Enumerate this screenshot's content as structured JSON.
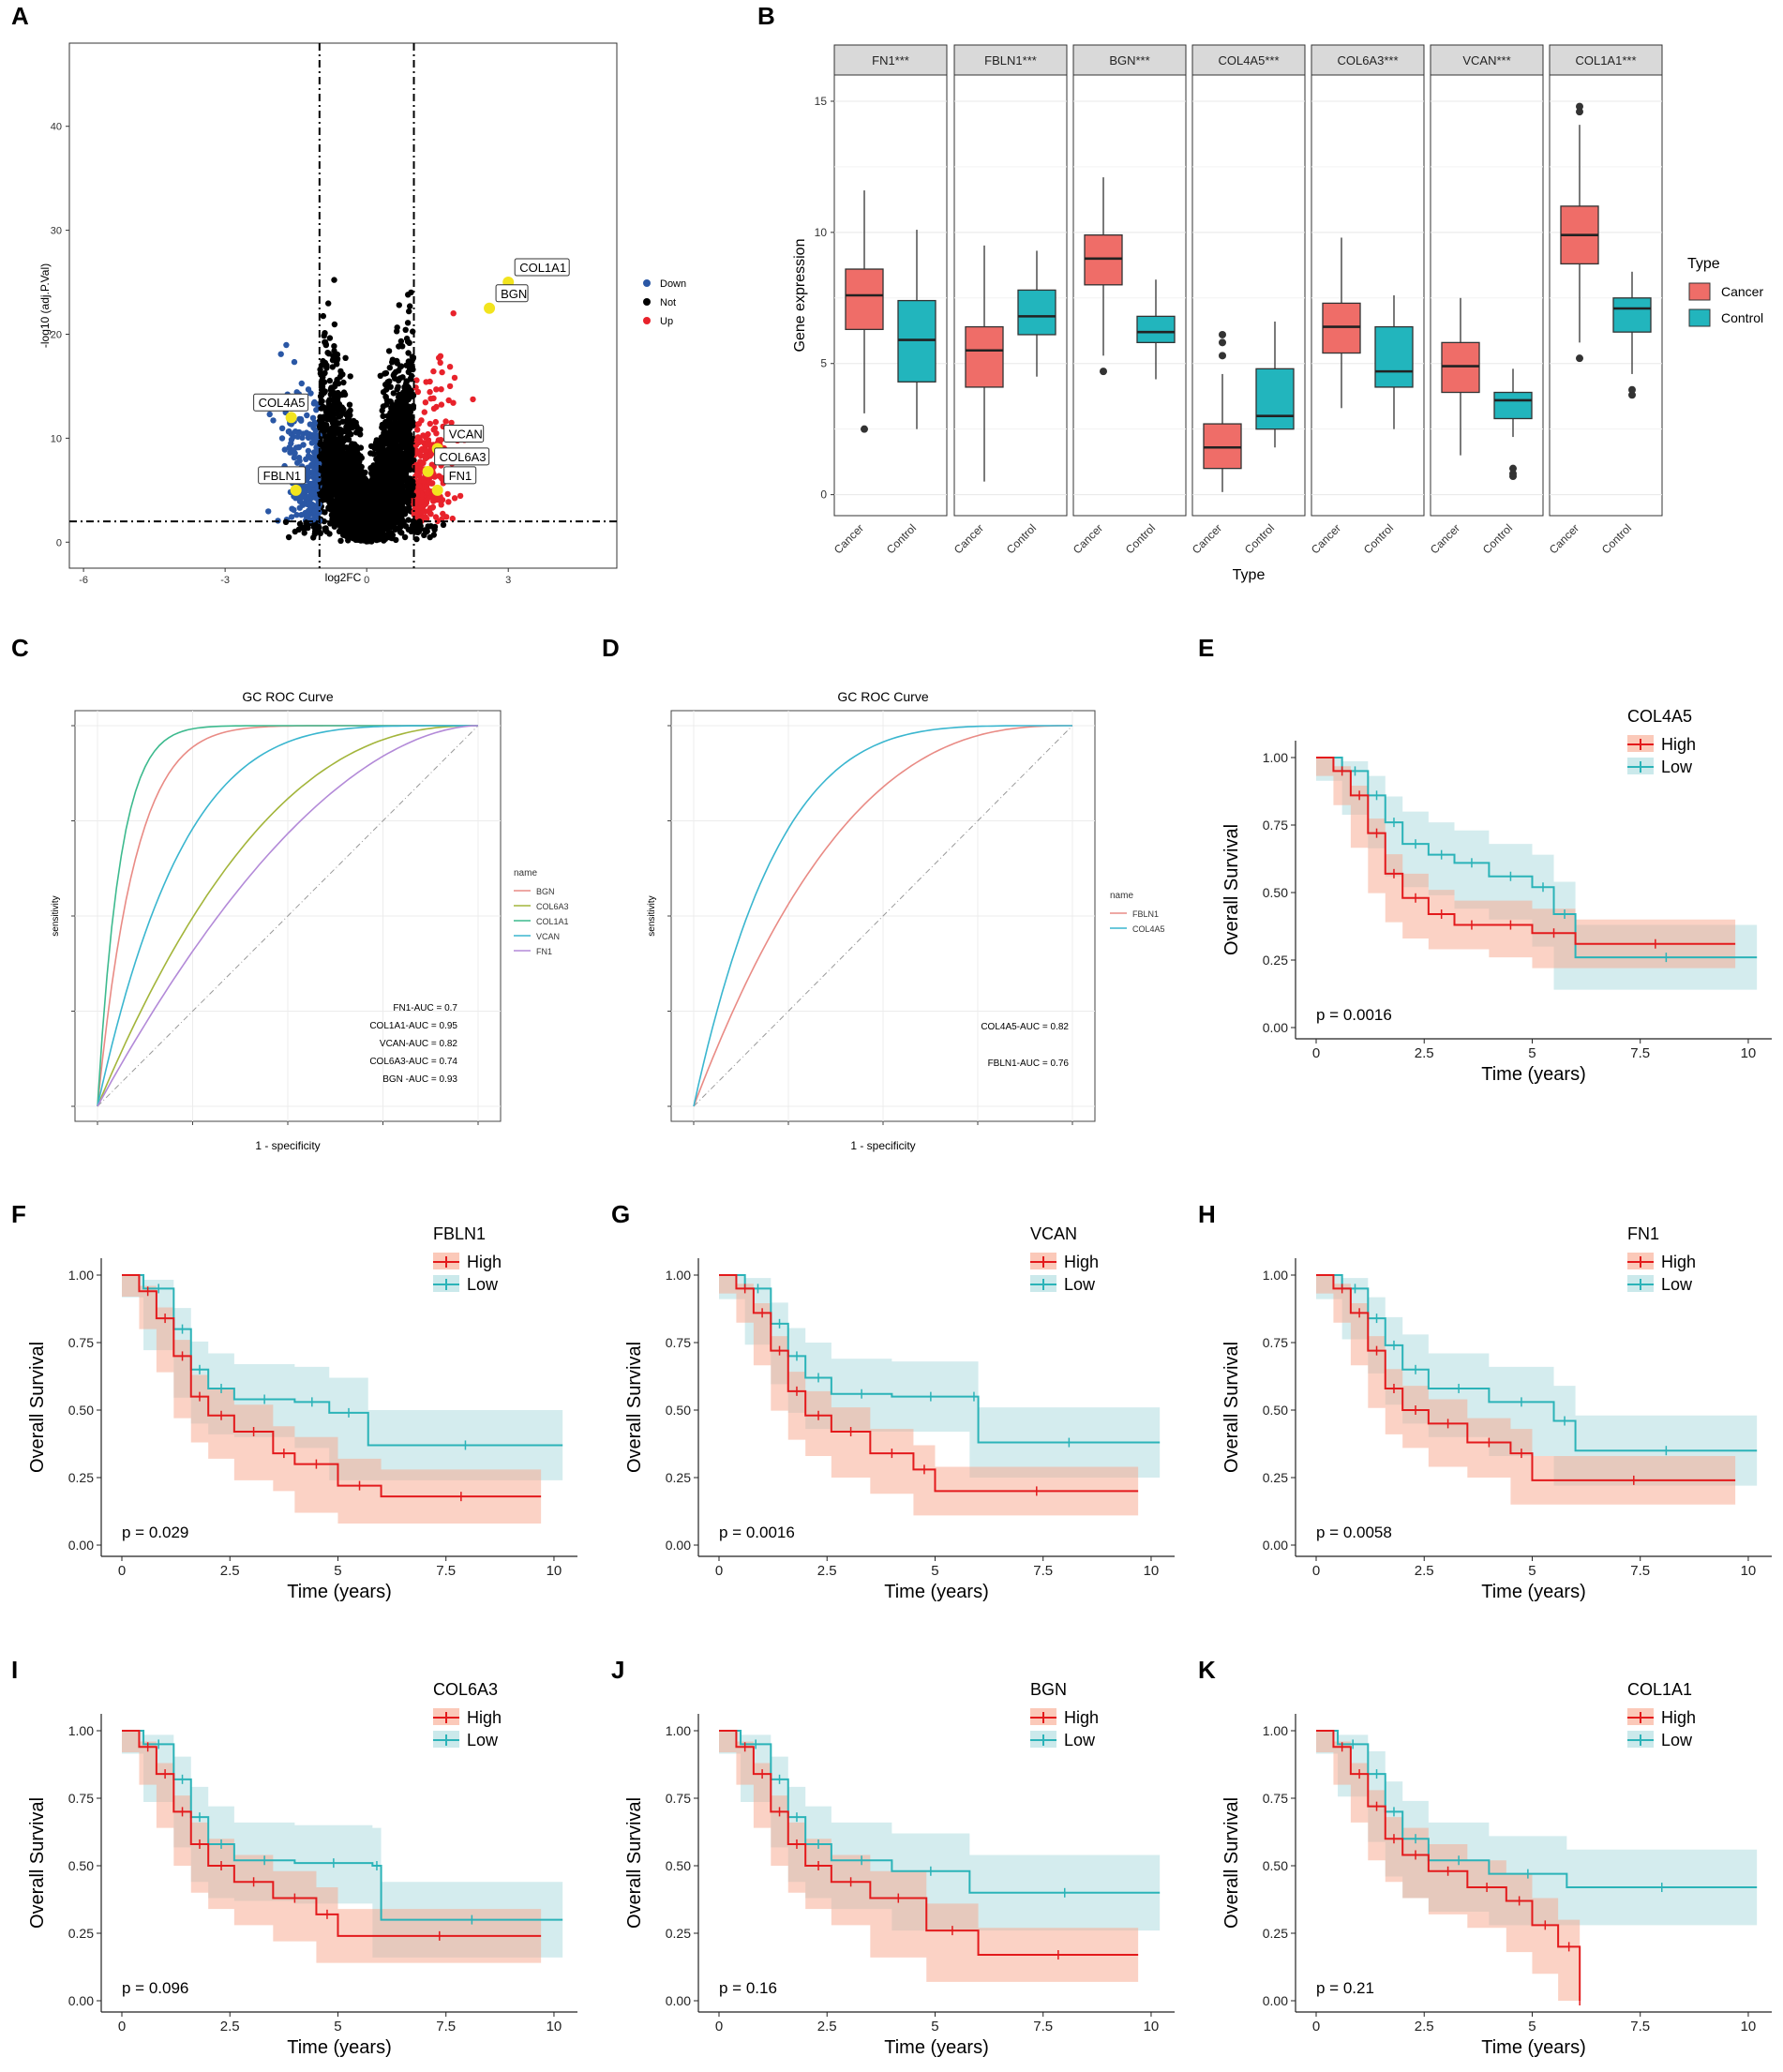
{
  "figure": {
    "panel_letters": [
      "A",
      "B",
      "C",
      "D",
      "E",
      "F",
      "G",
      "H",
      "I",
      "J",
      "K"
    ]
  },
  "colors": {
    "down": "#2a57a5",
    "not": "#000000",
    "up": "#e8222b",
    "highlight": "#f2e41e",
    "cancer": "#ef6d68",
    "control": "#22b5bd",
    "high_line": "#e31a1c",
    "low_line": "#2bb3b8",
    "high_band": "#f8a58b",
    "low_band": "#a9dadd",
    "roc": {
      "BGN": "#e98b85",
      "COL6A3": "#a3b53b",
      "COL1A1": "#3dba8e",
      "VCAN": "#3ab6cf",
      "FN1": "#b38ad8",
      "FBLN1": "#e98b85",
      "COL4A5": "#3ab6cf"
    }
  },
  "chart_data": [
    {
      "panel": "A",
      "type": "scatter",
      "xlabel": "log2FC",
      "ylabel": "-log10 (adj.P.Val)",
      "xlim": [
        -6.3,
        5.3
      ],
      "ylim": [
        -2.5,
        48
      ],
      "xticks": [
        "-6",
        "-3",
        "0",
        "3"
      ],
      "yticks": [
        "0",
        "10",
        "20",
        "30",
        "40"
      ],
      "thresholds": {
        "logfc": [
          -1,
          1
        ],
        "neg_log10_p": 2
      },
      "legend": [
        {
          "label": "Down"
        },
        {
          "label": "Not"
        },
        {
          "label": "Up"
        }
      ],
      "labeled_genes": [
        {
          "gene": "COL1A1",
          "x": 3.0,
          "y": 25.0
        },
        {
          "gene": "BGN",
          "x": 2.6,
          "y": 22.5
        },
        {
          "gene": "COL4A5",
          "x": -1.6,
          "y": 12.0
        },
        {
          "gene": "VCAN",
          "x": 1.5,
          "y": 9.0
        },
        {
          "gene": "COL6A3",
          "x": 1.3,
          "y": 6.8
        },
        {
          "gene": "FBLN1",
          "x": -1.5,
          "y": 5.0
        },
        {
          "gene": "FN1",
          "x": 1.5,
          "y": 5.0
        }
      ]
    },
    {
      "panel": "B",
      "type": "box",
      "xlabel": "Type",
      "ylabel": "Gene expression",
      "ylim": [
        -0.8,
        16
      ],
      "yticks": [
        "0",
        "5",
        "10",
        "15"
      ],
      "groups": [
        "Cancer",
        "Control"
      ],
      "legend_title": "Type",
      "genes": [
        {
          "name": "FN1***",
          "boxes": [
            {
              "q1": 6.3,
              "med": 7.6,
              "q3": 8.6,
              "lo": 3.1,
              "hi": 11.6,
              "out": [
                2.5
              ]
            },
            {
              "q1": 4.3,
              "med": 5.9,
              "q3": 7.4,
              "lo": 2.5,
              "hi": 10.1,
              "out": []
            }
          ]
        },
        {
          "name": "FBLN1***",
          "boxes": [
            {
              "q1": 4.1,
              "med": 5.5,
              "q3": 6.4,
              "lo": 0.5,
              "hi": 9.5,
              "out": []
            },
            {
              "q1": 6.1,
              "med": 6.8,
              "q3": 7.8,
              "lo": 4.5,
              "hi": 9.3,
              "out": []
            }
          ]
        },
        {
          "name": "BGN***",
          "boxes": [
            {
              "q1": 8.0,
              "med": 9.0,
              "q3": 9.9,
              "lo": 5.3,
              "hi": 12.1,
              "out": [
                4.7
              ]
            },
            {
              "q1": 5.8,
              "med": 6.2,
              "q3": 6.8,
              "lo": 4.4,
              "hi": 8.2,
              "out": []
            }
          ]
        },
        {
          "name": "COL4A5***",
          "boxes": [
            {
              "q1": 1.0,
              "med": 1.8,
              "q3": 2.7,
              "lo": 0.1,
              "hi": 4.6,
              "out": [
                5.3,
                5.8,
                6.1
              ]
            },
            {
              "q1": 2.5,
              "med": 3.0,
              "q3": 4.8,
              "lo": 1.8,
              "hi": 6.6,
              "out": []
            }
          ]
        },
        {
          "name": "COL6A3***",
          "boxes": [
            {
              "q1": 5.4,
              "med": 6.4,
              "q3": 7.3,
              "lo": 3.3,
              "hi": 9.8,
              "out": []
            },
            {
              "q1": 4.1,
              "med": 4.7,
              "q3": 6.4,
              "lo": 2.5,
              "hi": 7.6,
              "out": []
            }
          ]
        },
        {
          "name": "VCAN***",
          "boxes": [
            {
              "q1": 3.9,
              "med": 4.9,
              "q3": 5.8,
              "lo": 1.5,
              "hi": 7.5,
              "out": []
            },
            {
              "q1": 2.9,
              "med": 3.6,
              "q3": 3.9,
              "lo": 2.2,
              "hi": 4.8,
              "out": [
                1.0,
                0.8,
                0.7
              ]
            }
          ]
        },
        {
          "name": "COL1A1***",
          "boxes": [
            {
              "q1": 8.8,
              "med": 9.9,
              "q3": 11.0,
              "lo": 5.8,
              "hi": 14.1,
              "out": [
                5.2,
                14.6,
                14.8
              ]
            },
            {
              "q1": 6.2,
              "med": 7.1,
              "q3": 7.5,
              "lo": 4.6,
              "hi": 8.5,
              "out": [
                3.8,
                4.0
              ]
            }
          ]
        }
      ]
    },
    {
      "panel": "C",
      "type": "line",
      "title": "GC ROC Curve",
      "xlabel": "1 - specificity",
      "ylabel": "sensitivity",
      "legend_title": "name",
      "series": [
        {
          "name": "BGN",
          "k": 0.1
        },
        {
          "name": "COL6A3",
          "k": 0.42
        },
        {
          "name": "COL1A1",
          "k": 0.06
        },
        {
          "name": "VCAN",
          "k": 0.22
        },
        {
          "name": "FN1",
          "k": 0.55
        }
      ],
      "auc_labels": [
        "FN1-AUC = 0.7",
        "COL1A1-AUC = 0.95",
        "VCAN-AUC = 0.82",
        "COL6A3-AUC = 0.74",
        "BGN -AUC = 0.93"
      ]
    },
    {
      "panel": "D",
      "type": "line",
      "title": "GC ROC Curve",
      "xlabel": "1 - specificity",
      "ylabel": "sensitivity",
      "legend_title": "name",
      "series": [
        {
          "name": "FBLN1",
          "k": 0.38
        },
        {
          "name": "COL4A5",
          "k": 0.22
        }
      ],
      "auc_labels": [
        "COL4A5-AUC = 0.82",
        "FBLN1-AUC = 0.76"
      ]
    },
    {
      "panel": "E",
      "type": "line",
      "gene": "COL4A5",
      "pvalue": "p = 0.0016",
      "xlabel": "Time (years)",
      "ylabel": "Overall Survival",
      "high": {
        "pts": [
          [
            0,
            1
          ],
          [
            0.4,
            0.95
          ],
          [
            0.8,
            0.86
          ],
          [
            1.2,
            0.72
          ],
          [
            1.6,
            0.57
          ],
          [
            2,
            0.48
          ],
          [
            2.6,
            0.42
          ],
          [
            3.2,
            0.38
          ],
          [
            4,
            0.38
          ],
          [
            5,
            0.35
          ],
          [
            6,
            0.31
          ],
          [
            9.7,
            0.31
          ]
        ],
        "band": 0.09
      },
      "low": {
        "pts": [
          [
            0,
            1
          ],
          [
            0.6,
            0.95
          ],
          [
            1.2,
            0.86
          ],
          [
            1.6,
            0.76
          ],
          [
            2,
            0.68
          ],
          [
            2.6,
            0.64
          ],
          [
            3.2,
            0.61
          ],
          [
            4,
            0.56
          ],
          [
            5,
            0.52
          ],
          [
            5.5,
            0.42
          ],
          [
            6,
            0.26
          ],
          [
            10.2,
            0.26
          ]
        ],
        "band": 0.12
      }
    },
    {
      "panel": "F",
      "type": "line",
      "gene": "FBLN1",
      "pvalue": "p = 0.029",
      "xlabel": "Time (years)",
      "ylabel": "Overall Survival",
      "high": {
        "pts": [
          [
            0,
            1
          ],
          [
            0.4,
            0.94
          ],
          [
            0.8,
            0.84
          ],
          [
            1.2,
            0.7
          ],
          [
            1.6,
            0.55
          ],
          [
            2,
            0.48
          ],
          [
            2.6,
            0.42
          ],
          [
            3.5,
            0.34
          ],
          [
            4,
            0.3
          ],
          [
            5,
            0.22
          ],
          [
            6,
            0.18
          ],
          [
            9.7,
            0.18
          ]
        ],
        "band": 0.1
      },
      "low": {
        "pts": [
          [
            0,
            1
          ],
          [
            0.5,
            0.95
          ],
          [
            1.2,
            0.8
          ],
          [
            1.6,
            0.65
          ],
          [
            2,
            0.58
          ],
          [
            2.6,
            0.54
          ],
          [
            4,
            0.53
          ],
          [
            4.8,
            0.49
          ],
          [
            5.7,
            0.37
          ],
          [
            10.2,
            0.37
          ]
        ],
        "band": 0.13
      }
    },
    {
      "panel": "G",
      "type": "line",
      "gene": "VCAN",
      "pvalue": "p = 0.0016",
      "xlabel": "Time (years)",
      "ylabel": "Overall Survival",
      "high": {
        "pts": [
          [
            0,
            1
          ],
          [
            0.4,
            0.95
          ],
          [
            0.8,
            0.86
          ],
          [
            1.2,
            0.72
          ],
          [
            1.6,
            0.57
          ],
          [
            2,
            0.48
          ],
          [
            2.6,
            0.42
          ],
          [
            3.5,
            0.34
          ],
          [
            4.5,
            0.28
          ],
          [
            5,
            0.2
          ],
          [
            9.7,
            0.2
          ]
        ],
        "band": 0.09
      },
      "low": {
        "pts": [
          [
            0,
            1
          ],
          [
            0.6,
            0.95
          ],
          [
            1.2,
            0.82
          ],
          [
            1.6,
            0.7
          ],
          [
            2,
            0.62
          ],
          [
            2.6,
            0.56
          ],
          [
            4,
            0.55
          ],
          [
            5.8,
            0.55
          ],
          [
            6,
            0.38
          ],
          [
            10.2,
            0.38
          ]
        ],
        "band": 0.13
      }
    },
    {
      "panel": "H",
      "type": "line",
      "gene": "FN1",
      "pvalue": "p = 0.0058",
      "xlabel": "Time (years)",
      "ylabel": "Overall Survival",
      "high": {
        "pts": [
          [
            0,
            1
          ],
          [
            0.4,
            0.95
          ],
          [
            0.8,
            0.86
          ],
          [
            1.2,
            0.72
          ],
          [
            1.6,
            0.58
          ],
          [
            2,
            0.5
          ],
          [
            2.6,
            0.45
          ],
          [
            3.5,
            0.38
          ],
          [
            4.5,
            0.34
          ],
          [
            5,
            0.24
          ],
          [
            9.7,
            0.24
          ]
        ],
        "band": 0.09
      },
      "low": {
        "pts": [
          [
            0,
            1
          ],
          [
            0.6,
            0.95
          ],
          [
            1.2,
            0.84
          ],
          [
            1.6,
            0.74
          ],
          [
            2,
            0.65
          ],
          [
            2.6,
            0.58
          ],
          [
            4,
            0.53
          ],
          [
            5.5,
            0.46
          ],
          [
            6,
            0.35
          ],
          [
            10.2,
            0.35
          ]
        ],
        "band": 0.13
      }
    },
    {
      "panel": "I",
      "type": "line",
      "gene": "COL6A3",
      "pvalue": "p = 0.096",
      "xlabel": "Time (years)",
      "ylabel": "Overall Survival",
      "high": {
        "pts": [
          [
            0,
            1
          ],
          [
            0.4,
            0.94
          ],
          [
            0.8,
            0.84
          ],
          [
            1.2,
            0.7
          ],
          [
            1.6,
            0.58
          ],
          [
            2,
            0.5
          ],
          [
            2.6,
            0.44
          ],
          [
            3.5,
            0.38
          ],
          [
            4.5,
            0.32
          ],
          [
            5,
            0.24
          ],
          [
            9.7,
            0.24
          ]
        ],
        "band": 0.1
      },
      "low": {
        "pts": [
          [
            0,
            1
          ],
          [
            0.5,
            0.95
          ],
          [
            1.2,
            0.82
          ],
          [
            1.6,
            0.68
          ],
          [
            2,
            0.58
          ],
          [
            2.6,
            0.52
          ],
          [
            4,
            0.51
          ],
          [
            5.8,
            0.5
          ],
          [
            6,
            0.3
          ],
          [
            10.2,
            0.3
          ]
        ],
        "band": 0.14
      }
    },
    {
      "panel": "J",
      "type": "line",
      "gene": "BGN",
      "pvalue": "p = 0.16",
      "xlabel": "Time (years)",
      "ylabel": "Overall Survival",
      "high": {
        "pts": [
          [
            0,
            1
          ],
          [
            0.4,
            0.94
          ],
          [
            0.8,
            0.84
          ],
          [
            1.2,
            0.7
          ],
          [
            1.6,
            0.58
          ],
          [
            2,
            0.5
          ],
          [
            2.6,
            0.44
          ],
          [
            3.5,
            0.38
          ],
          [
            4.8,
            0.26
          ],
          [
            6,
            0.17
          ],
          [
            9.7,
            0.17
          ]
        ],
        "band": 0.1
      },
      "low": {
        "pts": [
          [
            0,
            1
          ],
          [
            0.5,
            0.95
          ],
          [
            1.2,
            0.82
          ],
          [
            1.6,
            0.68
          ],
          [
            2,
            0.58
          ],
          [
            2.6,
            0.52
          ],
          [
            4,
            0.48
          ],
          [
            5.8,
            0.4
          ],
          [
            10.2,
            0.4
          ]
        ],
        "band": 0.14
      }
    },
    {
      "panel": "K",
      "type": "line",
      "gene": "COL1A1",
      "pvalue": "p = 0.21",
      "xlabel": "Time (years)",
      "ylabel": "Overall Survival",
      "high": {
        "pts": [
          [
            0,
            1
          ],
          [
            0.4,
            0.94
          ],
          [
            0.8,
            0.84
          ],
          [
            1.2,
            0.72
          ],
          [
            1.6,
            0.6
          ],
          [
            2,
            0.54
          ],
          [
            2.6,
            0.48
          ],
          [
            3.5,
            0.42
          ],
          [
            4.4,
            0.37
          ],
          [
            5,
            0.28
          ],
          [
            5.6,
            0.2
          ],
          [
            6.1,
            0
          ],
          [
            6.1,
            0
          ]
        ],
        "band": 0.1
      },
      "low": {
        "pts": [
          [
            0,
            1
          ],
          [
            0.5,
            0.95
          ],
          [
            1.2,
            0.84
          ],
          [
            1.6,
            0.7
          ],
          [
            2,
            0.6
          ],
          [
            2.6,
            0.52
          ],
          [
            4,
            0.47
          ],
          [
            5.8,
            0.42
          ],
          [
            10.2,
            0.42
          ]
        ],
        "band": 0.14
      }
    }
  ],
  "km_common": {
    "xticks": [
      "0",
      "2.5",
      "5",
      "7.5",
      "10"
    ],
    "yticks": [
      "0.00",
      "0.25",
      "0.50",
      "0.75",
      "1.00"
    ],
    "legend_labels": [
      "High",
      "Low"
    ]
  }
}
